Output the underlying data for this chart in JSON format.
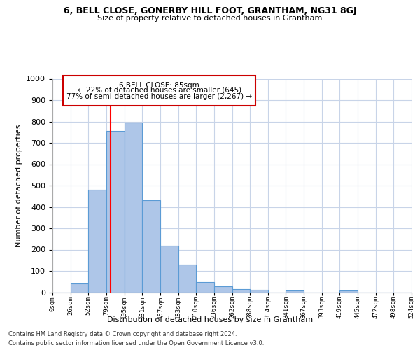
{
  "title1": "6, BELL CLOSE, GONERBY HILL FOOT, GRANTHAM, NG31 8GJ",
  "title2": "Size of property relative to detached houses in Grantham",
  "xlabel": "Distribution of detached houses by size in Grantham",
  "ylabel": "Number of detached properties",
  "bar_values": [
    0,
    42,
    480,
    755,
    795,
    432,
    218,
    128,
    48,
    28,
    15,
    10,
    0,
    8,
    0,
    0,
    8,
    0,
    0,
    0
  ],
  "bin_labels": [
    "0sqm",
    "26sqm",
    "52sqm",
    "79sqm",
    "105sqm",
    "131sqm",
    "157sqm",
    "183sqm",
    "210sqm",
    "236sqm",
    "262sqm",
    "288sqm",
    "314sqm",
    "341sqm",
    "367sqm",
    "393sqm",
    "419sqm",
    "445sqm",
    "472sqm",
    "498sqm",
    "524sqm"
  ],
  "bar_color": "#aec6e8",
  "bar_edge_color": "#5b9bd5",
  "red_line_x": 85,
  "bin_edges_sqm": [
    0,
    26,
    52,
    79,
    105,
    131,
    157,
    183,
    210,
    236,
    262,
    288,
    314,
    341,
    367,
    393,
    419,
    445,
    472,
    498,
    524
  ],
  "ylim": [
    0,
    1000
  ],
  "yticks": [
    0,
    100,
    200,
    300,
    400,
    500,
    600,
    700,
    800,
    900,
    1000
  ],
  "ann_line1": "6 BELL CLOSE: 85sqm",
  "ann_line2": "← 22% of detached houses are smaller (645)",
  "ann_line3": "77% of semi-detached houses are larger (2,267) →",
  "annotation_box_color": "#ffffff",
  "annotation_box_edge": "#cc0000",
  "footer_line1": "Contains HM Land Registry data © Crown copyright and database right 2024.",
  "footer_line2": "Contains public sector information licensed under the Open Government Licence v3.0.",
  "background_color": "#ffffff",
  "grid_color": "#c8d4e8"
}
